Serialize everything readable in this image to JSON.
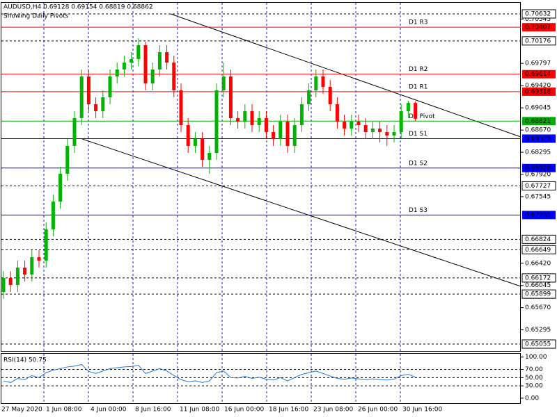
{
  "chart_data": {
    "type": "candlestick",
    "title": "AUDUSD,H4  0.69128 0.69154 0.68819 0.68862",
    "subtitle": "Showing Daily Pivots",
    "up_color": "#00b400",
    "down_color": "#ff0000",
    "ylim": [
      0.64938,
      0.7082
    ],
    "yticks": [
      0.70545,
      0.69797,
      {
        "value": 0.6942,
        "label": "0.69420"
      },
      0.69045,
      {
        "value": 0.6867,
        "label": "0.68670"
      },
      0.68295,
      {
        "value": 0.6792,
        "label": "0.67920"
      },
      0.67545,
      {
        "value": 0.6642,
        "label": "0.66420"
      },
      0.66045,
      {
        "value": 0.6567,
        "label": "0.65670"
      },
      0.65295
    ],
    "x_labels": [
      "27 May 2020",
      "1 Jun 08:00",
      "4 Jun 00:00",
      "8 Jun 16:00",
      "11 Jun 08:00",
      "16 Jun 00:00",
      "18 Jun 16:00",
      "23 Jun 08:00",
      "26 Jun 00:00",
      "30 Jun 16:00"
    ],
    "pivots": [
      {
        "name": "D1 R3",
        "value": 0.70407,
        "color": "#ff0000"
      },
      {
        "name": "D1 R2",
        "value": 0.69614,
        "color": "#ff0000"
      },
      {
        "name": "D1 R1",
        "value": 0.69318,
        "color": "#ff0000"
      },
      {
        "name": "D1 Pivot",
        "value": 0.68821,
        "color": "#00b000"
      },
      {
        "name": "D1 S1",
        "value": 0.68525,
        "color": "#0000ff"
      },
      {
        "name": "D1 S2",
        "value": 0.68028,
        "color": "#0000ff"
      },
      {
        "name": "D1 S3",
        "value": 0.67235,
        "color": "#0000ff"
      }
    ],
    "hlines": [
      0.70632,
      0.70176,
      0.67727,
      0.66824,
      0.66649,
      0.66172,
      0.65899,
      0.65055
    ],
    "ohlc": [
      [
        0.65935,
        0.66287,
        0.65818,
        0.6617
      ],
      [
        0.6617,
        0.66287,
        0.65935,
        0.66053
      ],
      [
        0.66053,
        0.66464,
        0.65935,
        0.66346
      ],
      [
        0.66346,
        0.66464,
        0.66111,
        0.66229
      ],
      [
        0.66229,
        0.6664,
        0.66111,
        0.66522
      ],
      [
        0.66522,
        0.6664,
        0.66346,
        0.66464
      ],
      [
        0.66464,
        0.6711,
        0.66346,
        0.66992
      ],
      [
        0.66992,
        0.67579,
        0.66875,
        0.67462
      ],
      [
        0.67462,
        0.68049,
        0.67345,
        0.67932
      ],
      [
        0.67932,
        0.68519,
        0.67814,
        0.68402
      ],
      [
        0.68402,
        0.68989,
        0.68284,
        0.68871
      ],
      [
        0.68871,
        0.69693,
        0.68754,
        0.69575
      ],
      [
        0.69575,
        0.69693,
        0.68989,
        0.69106
      ],
      [
        0.69106,
        0.69223,
        0.68871,
        0.68989
      ],
      [
        0.68989,
        0.69341,
        0.68871,
        0.69223
      ],
      [
        0.69223,
        0.69693,
        0.69106,
        0.69575
      ],
      [
        0.69575,
        0.6981,
        0.69458,
        0.69693
      ],
      [
        0.69693,
        0.69928,
        0.69575,
        0.6981
      ],
      [
        0.6981,
        0.69986,
        0.69693,
        0.69869
      ],
      [
        0.69869,
        0.70221,
        0.69752,
        0.70104
      ],
      [
        0.70104,
        0.70163,
        0.69341,
        0.69458
      ],
      [
        0.69458,
        0.6981,
        0.69341,
        0.69693
      ],
      [
        0.69693,
        0.70104,
        0.69575,
        0.69986
      ],
      [
        0.69986,
        0.70104,
        0.69693,
        0.6981
      ],
      [
        0.6981,
        0.69928,
        0.69223,
        0.69341
      ],
      [
        0.69341,
        0.69458,
        0.68636,
        0.68754
      ],
      [
        0.68754,
        0.68871,
        0.68284,
        0.68402
      ],
      [
        0.68402,
        0.68636,
        0.68284,
        0.68519
      ],
      [
        0.68519,
        0.68636,
        0.68049,
        0.68167
      ],
      [
        0.68167,
        0.68402,
        0.67932,
        0.68284
      ],
      [
        0.68284,
        0.69458,
        0.68167,
        0.69341
      ],
      [
        0.69341,
        0.6981,
        0.69223,
        0.69575
      ],
      [
        0.69575,
        0.69693,
        0.68754,
        0.68871
      ],
      [
        0.68871,
        0.68989,
        0.68695,
        0.68812
      ],
      [
        0.68812,
        0.69106,
        0.68695,
        0.68989
      ],
      [
        0.68989,
        0.69106,
        0.68636,
        0.68754
      ],
      [
        0.68754,
        0.68989,
        0.68636,
        0.68871
      ],
      [
        0.68871,
        0.68989,
        0.68519,
        0.68636
      ],
      [
        0.68636,
        0.68754,
        0.68402,
        0.68519
      ],
      [
        0.68519,
        0.6893,
        0.68402,
        0.68812
      ],
      [
        0.68812,
        0.6893,
        0.68284,
        0.68402
      ],
      [
        0.68402,
        0.68871,
        0.68284,
        0.68754
      ],
      [
        0.68754,
        0.69223,
        0.68636,
        0.69106
      ],
      [
        0.69106,
        0.69458,
        0.68989,
        0.69341
      ],
      [
        0.69341,
        0.69693,
        0.69223,
        0.69575
      ],
      [
        0.69575,
        0.69693,
        0.69282,
        0.69399
      ],
      [
        0.69399,
        0.69517,
        0.68989,
        0.69106
      ],
      [
        0.69106,
        0.69223,
        0.68695,
        0.68812
      ],
      [
        0.68812,
        0.6893,
        0.68578,
        0.68695
      ],
      [
        0.68695,
        0.6893,
        0.68578,
        0.68812
      ],
      [
        0.68812,
        0.6893,
        0.68636,
        0.68754
      ],
      [
        0.68754,
        0.68871,
        0.68519,
        0.68636
      ],
      [
        0.68636,
        0.68812,
        0.68519,
        0.68695
      ],
      [
        0.68695,
        0.68812,
        0.6846,
        0.68636
      ],
      [
        0.68636,
        0.68754,
        0.68402,
        0.68578
      ],
      [
        0.68578,
        0.68754,
        0.6846,
        0.68636
      ],
      [
        0.68636,
        0.69106,
        0.68519,
        0.68989
      ],
      [
        0.68989,
        0.69165,
        0.68871,
        0.69128
      ],
      [
        0.69128,
        0.69154,
        0.68819,
        0.68862
      ]
    ],
    "rsi": {
      "label": "RSI(14) 50.75",
      "color": "#1e78d2",
      "ylim": [
        -12,
        108
      ],
      "yticks": [
        {
          "value": 100,
          "label": "100.00"
        },
        {
          "value": 70,
          "label": "70.00"
        },
        {
          "value": 50,
          "label": "50.00"
        },
        {
          "value": 30,
          "label": "30.00"
        },
        {
          "value": 0,
          "label": "0.00"
        }
      ],
      "levels": [
        70,
        50,
        30
      ],
      "values": [
        42,
        38,
        48,
        45,
        55,
        50,
        62,
        68,
        72,
        76,
        78,
        82,
        65,
        60,
        66,
        72,
        74,
        76,
        77,
        80,
        60,
        66,
        72,
        66,
        55,
        45,
        40,
        42,
        38,
        42,
        62,
        66,
        50,
        49,
        53,
        48,
        51,
        46,
        44,
        50,
        42,
        50,
        58,
        62,
        66,
        60,
        54,
        48,
        46,
        49,
        47,
        45,
        47,
        45,
        44,
        46,
        55,
        58,
        50.75
      ]
    }
  }
}
